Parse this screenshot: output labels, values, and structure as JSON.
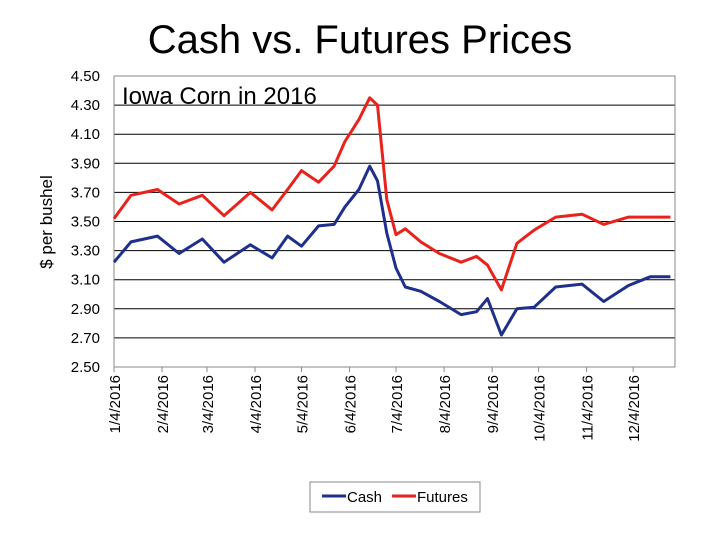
{
  "title": "Cash vs. Futures Prices",
  "chart_data": {
    "type": "line",
    "title": "Cash vs. Futures Prices",
    "subtitle": "Iowa Corn in 2016",
    "ylabel": "$ per bushel",
    "xlabel": "",
    "ylim": [
      2.5,
      4.5
    ],
    "yticks": [
      "4.50",
      "4.30",
      "4.10",
      "3.90",
      "3.70",
      "3.50",
      "3.30",
      "3.10",
      "2.90",
      "2.70",
      "2.50"
    ],
    "xticks": [
      "1/4/2016",
      "2/4/2016",
      "3/4/2016",
      "4/4/2016",
      "5/4/2016",
      "6/4/2016",
      "7/4/2016",
      "8/4/2016",
      "9/4/2016",
      "10/4/2016",
      "11/4/2016",
      "12/4/2016"
    ],
    "grid": "horizontal",
    "legend_position": "bottom",
    "colors": {
      "cash": "#1f2f8c",
      "futures": "#e8231c"
    },
    "x": [
      "1/4/2016",
      "1/15/2016",
      "2/1/2016",
      "2/15/2016",
      "3/1/2016",
      "3/15/2016",
      "4/1/2016",
      "4/15/2016",
      "4/25/2016",
      "5/4/2016",
      "5/15/2016",
      "5/25/2016",
      "6/1/2016",
      "6/10/2016",
      "6/17/2016",
      "6/22/2016",
      "6/28/2016",
      "7/4/2016",
      "7/10/2016",
      "7/20/2016",
      "8/1/2016",
      "8/15/2016",
      "8/25/2016",
      "9/1/2016",
      "9/10/2016",
      "9/20/2016",
      "10/1/2016",
      "10/15/2016",
      "11/1/2016",
      "11/15/2016",
      "12/1/2016",
      "12/15/2016",
      "12/28/2016"
    ],
    "series": [
      {
        "name": "Cash",
        "values": [
          3.22,
          3.36,
          3.4,
          3.28,
          3.38,
          3.22,
          3.34,
          3.25,
          3.4,
          3.33,
          3.47,
          3.48,
          3.6,
          3.72,
          3.88,
          3.78,
          3.42,
          3.18,
          3.05,
          3.02,
          2.95,
          2.86,
          2.88,
          2.97,
          2.72,
          2.9,
          2.91,
          3.05,
          3.07,
          2.95,
          3.06,
          3.12,
          3.12
        ]
      },
      {
        "name": "Futures",
        "values": [
          3.52,
          3.68,
          3.72,
          3.62,
          3.68,
          3.54,
          3.7,
          3.58,
          3.72,
          3.85,
          3.77,
          3.88,
          4.05,
          4.2,
          4.35,
          4.3,
          3.65,
          3.41,
          3.45,
          3.36,
          3.28,
          3.22,
          3.26,
          3.2,
          3.03,
          3.35,
          3.44,
          3.53,
          3.55,
          3.48,
          3.53,
          3.53,
          3.53
        ]
      }
    ]
  }
}
